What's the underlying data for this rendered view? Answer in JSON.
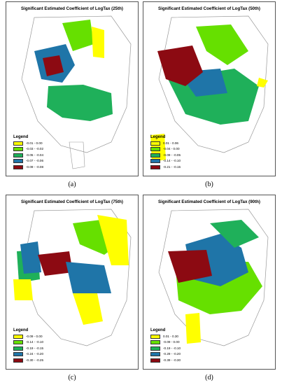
{
  "colors": {
    "yellow": "#ffff00",
    "light_green": "#66e000",
    "mid_green": "#1fb05a",
    "blue": "#1f75a8",
    "dark_red": "#8c0a12"
  },
  "panels": [
    {
      "title": "Significant Estimated Coefficient of LogTax (25th)",
      "caption": "(a)",
      "legend_title": "Legend",
      "legend": [
        {
          "label": "-0.01 - 0.00",
          "color": "#ffff00"
        },
        {
          "label": "-0.03 - -0.02",
          "color": "#66e000"
        },
        {
          "label": "-0.05 - -0.04",
          "color": "#1fb05a"
        },
        {
          "label": "-0.07 - -0.06",
          "color": "#1f75a8"
        },
        {
          "label": "-0.09 - -0.08",
          "color": "#8c0a12"
        }
      ]
    },
    {
      "title": "Significant Estimated Coefficient of LogTax (50th)",
      "caption": "(b)",
      "legend_title": "Legend",
      "legend": [
        {
          "label": "0.01 - 0.06",
          "color": "#ffff00"
        },
        {
          "label": "-0.04 - 0.00",
          "color": "#66e000"
        },
        {
          "label": "-0.09 - -0.05",
          "color": "#1fb05a"
        },
        {
          "label": "-0.14 - -0.10",
          "color": "#1f75a8"
        },
        {
          "label": "-0.21 - -0.15",
          "color": "#8c0a12"
        }
      ]
    },
    {
      "title": "Significant Estimated Coefficient of LogTax (75th)",
      "caption": "(c)",
      "legend_title": "Legend",
      "legend": [
        {
          "label": "-0.09 - 0.00",
          "color": "#ffff00"
        },
        {
          "label": "-0.14 - -0.10",
          "color": "#66e000"
        },
        {
          "label": "-0.19 - -0.15",
          "color": "#1fb05a"
        },
        {
          "label": "-0.24 - -0.20",
          "color": "#1f75a8"
        },
        {
          "label": "-0.30 - -0.25",
          "color": "#8c0a12"
        }
      ]
    },
    {
      "title": "Significant Estimated Coefficient of LogTax (90th)",
      "caption": "(d)",
      "legend_title": "Legend",
      "legend": [
        {
          "label": "0.01 - 0.30",
          "color": "#ffff00"
        },
        {
          "label": "-0.09 - 0.00",
          "color": "#66e000"
        },
        {
          "label": "-0.19 - -0.10",
          "color": "#1fb05a"
        },
        {
          "label": "-0.29 - -0.20",
          "color": "#1f75a8"
        },
        {
          "label": "-0.39 - -0.30",
          "color": "#8c0a12"
        }
      ]
    }
  ]
}
